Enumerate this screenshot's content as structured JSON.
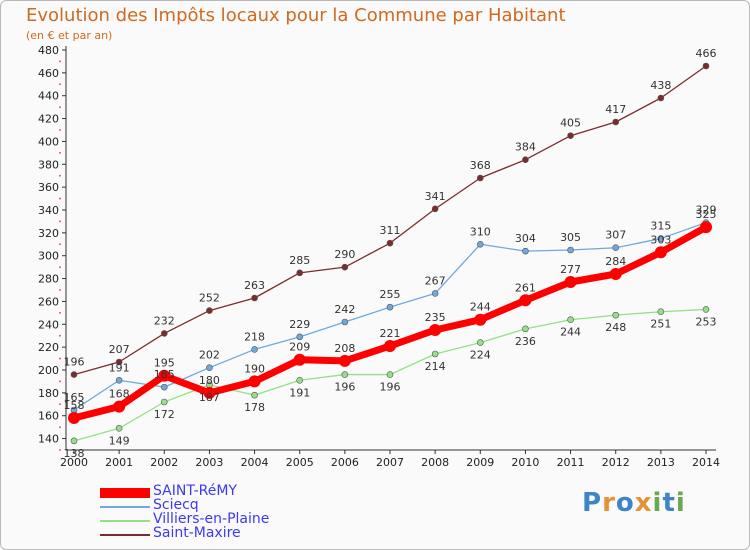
{
  "title": "Evolution des Impôts locaux pour la Commune par Habitant",
  "subtitle": "(en € et par an)",
  "brand": {
    "letters": [
      "P",
      "r",
      "o",
      "x",
      "i",
      "t",
      "i"
    ],
    "colors": [
      "#3d85c6",
      "#e69138",
      "#3d85c6",
      "#e69138",
      "#6aa84f",
      "#3d85c6",
      "#6aa84f"
    ]
  },
  "chart_data": {
    "type": "line",
    "x": [
      "2000",
      "2001",
      "2002",
      "2003",
      "2004",
      "2005",
      "2006",
      "2007",
      "2008",
      "2009",
      "2010",
      "2011",
      "2012",
      "2013",
      "2014"
    ],
    "ylim": [
      130,
      480
    ],
    "yticks": [
      140,
      160,
      180,
      200,
      220,
      240,
      260,
      280,
      300,
      320,
      340,
      360,
      380,
      400,
      420,
      440,
      460,
      480
    ],
    "grid": false,
    "legend_position": "bottom-left",
    "series": [
      {
        "name": "SAINT-RéMY",
        "color": "#ff0000",
        "values": [
          158,
          168,
          195,
          180,
          190,
          209,
          208,
          221,
          235,
          244,
          261,
          277,
          284,
          303,
          325
        ]
      },
      {
        "name": "Sciecq",
        "color": "#6fa8dc",
        "values": [
          165,
          191,
          185,
          202,
          218,
          229,
          242,
          255,
          267,
          310,
          304,
          305,
          307,
          315,
          329
        ]
      },
      {
        "name": "Villiers-en-Plaine",
        "color": "#93e087",
        "values": [
          138,
          149,
          172,
          187,
          178,
          191,
          196,
          196,
          214,
          224,
          236,
          244,
          248,
          251,
          253
        ]
      },
      {
        "name": "Saint-Maxire",
        "color": "#7b2c2c",
        "values": [
          196,
          207,
          232,
          252,
          263,
          285,
          290,
          311,
          341,
          368,
          384,
          405,
          417,
          438,
          466
        ]
      }
    ]
  }
}
